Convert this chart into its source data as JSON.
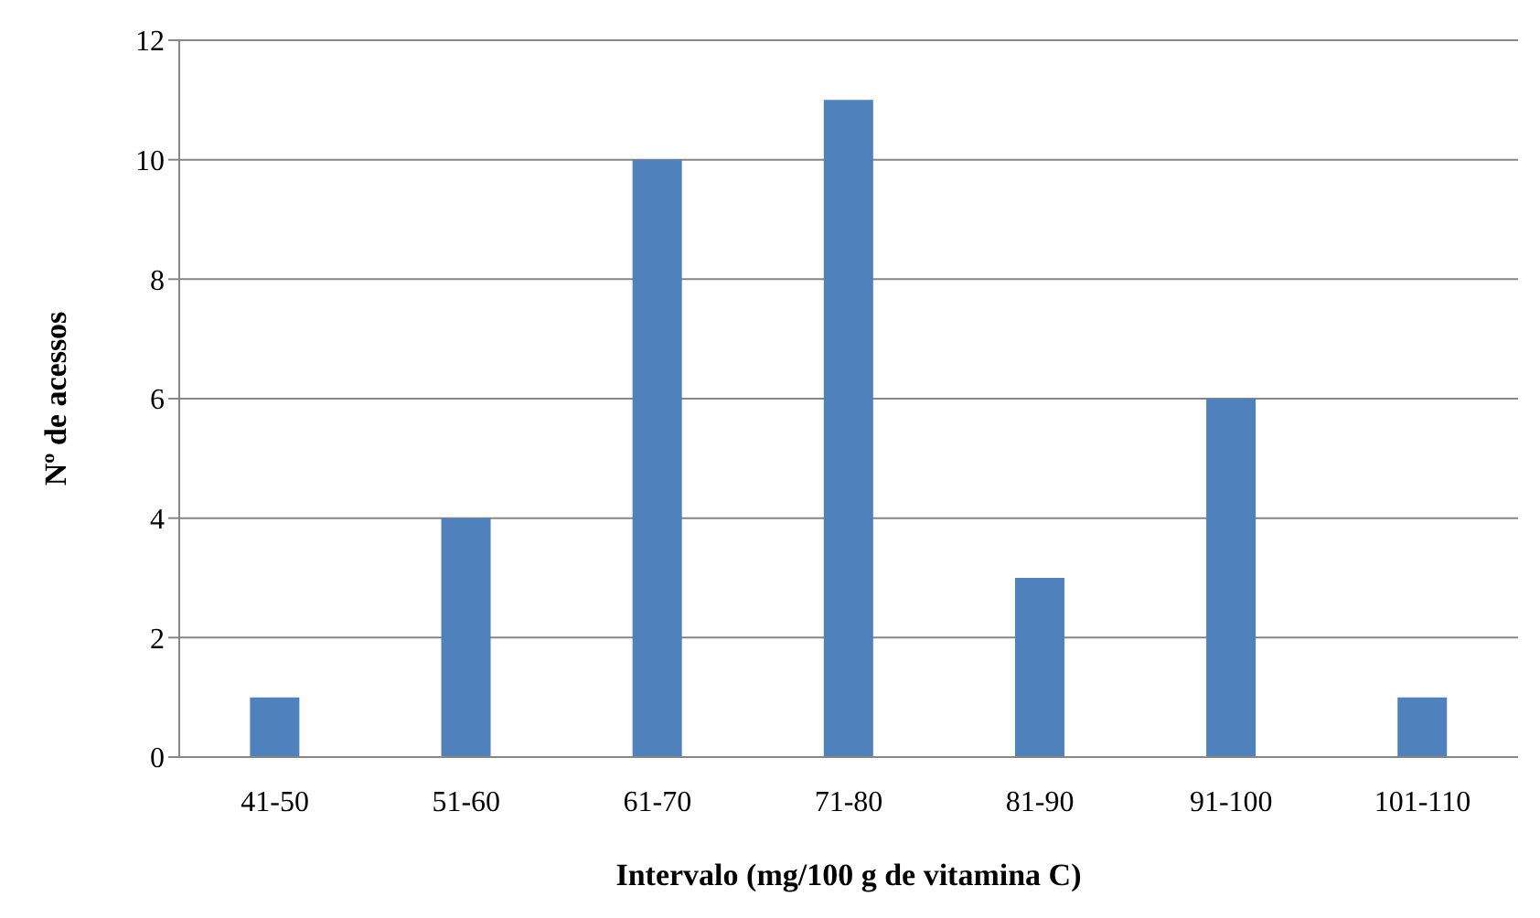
{
  "chart_data": {
    "type": "bar",
    "xlabel": "Intervalo (mg/100 g de vitamina C)",
    "ylabel": "Nº de acessos",
    "categories": [
      "41-50",
      "51-60",
      "61-70",
      "71-80",
      "81-90",
      "91-100",
      "101-110"
    ],
    "values": [
      1,
      4,
      10,
      11,
      3,
      6,
      1
    ],
    "color": "#4f81bd",
    "ylim": [
      0,
      12
    ],
    "yticks": [
      0,
      2,
      4,
      6,
      8,
      10,
      12
    ],
    "grid": "y"
  }
}
